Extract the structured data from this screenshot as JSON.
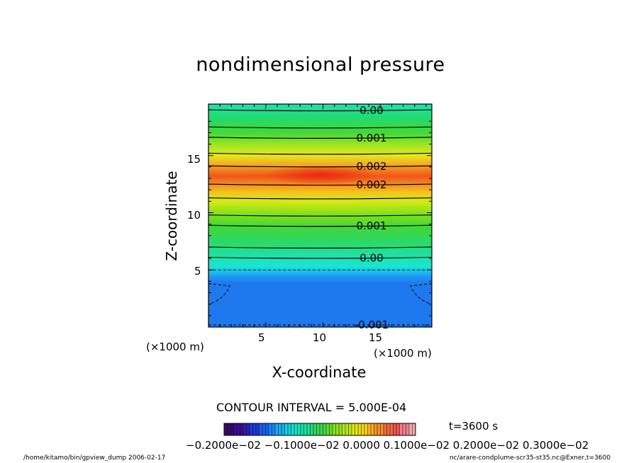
{
  "chart_data": {
    "type": "heatmap",
    "title": "nondimensional pressure",
    "xlabel": "X-coordinate",
    "ylabel": "Z-coordinate",
    "x_unit": "(×1000 m)",
    "y_unit": "(×1000 m)",
    "xlim": [
      0,
      19.5
    ],
    "ylim": [
      0,
      19.5
    ],
    "x_ticks": [
      5,
      10,
      15
    ],
    "y_ticks": [
      5,
      10,
      15
    ],
    "contour_labels": [
      {
        "text": "0.00",
        "z": 19.0
      },
      {
        "text": "0.001",
        "z": 16.6
      },
      {
        "text": "0.002",
        "z": 14.1
      },
      {
        "text": "0.002",
        "z": 12.5
      },
      {
        "text": "0.001",
        "z": 8.9
      },
      {
        "text": "0.00",
        "z": 6.1
      },
      {
        "text": "-0.001",
        "z": 0.0
      }
    ],
    "contour_interval_text": "CONTOUR INTERVAL = 5.000E-04",
    "time_text": "t=3600 s",
    "colorbar_labels_text": "−0.2000e−02  −0.1000e−02  0.0000  0.1000e−02  0.2000e−02  0.3000e−02",
    "colorbar_range": [
      -0.002,
      0.003
    ],
    "bands_bottom_to_top": [
      {
        "z": 0.0,
        "color": "#1e78ee"
      },
      {
        "z": 3.8,
        "color": "#1e78ee"
      },
      {
        "z": 4.4,
        "color": "#2196f2"
      },
      {
        "z": 4.9,
        "color": "#16c4ec"
      },
      {
        "z": 5.3,
        "color": "#19e6d2"
      },
      {
        "z": 6.4,
        "color": "#20e0a0"
      },
      {
        "z": 7.4,
        "color": "#2cd86a"
      },
      {
        "z": 8.7,
        "color": "#3ed83a"
      },
      {
        "z": 10.0,
        "color": "#8ce018"
      },
      {
        "z": 11.0,
        "color": "#d6ea16"
      },
      {
        "z": 11.8,
        "color": "#f4c41c"
      },
      {
        "z": 12.5,
        "color": "#f68a1e"
      },
      {
        "z": 13.2,
        "color": "#f0561a"
      },
      {
        "z": 14.1,
        "color": "#f6a020"
      },
      {
        "z": 15.0,
        "color": "#e6e61e"
      },
      {
        "z": 16.0,
        "color": "#9ae424"
      },
      {
        "z": 17.0,
        "color": "#44d838"
      },
      {
        "z": 18.3,
        "color": "#22da6e"
      },
      {
        "z": 19.5,
        "color": "#1ee2b0"
      }
    ],
    "contours_solid_z": [
      19.0,
      17.5,
      16.6,
      15.2,
      14.1,
      12.5,
      11.3,
      9.8,
      8.9,
      7.0,
      6.1
    ],
    "contours_dashed_z": [
      5.0,
      0.0
    ],
    "max_center": {
      "x": 9.8,
      "z": 13.3,
      "color": "#e82a14"
    }
  },
  "footer": {
    "left": "/home/kitamo/bin/gpview_dump  2006-02-17",
    "right": "nc/arare-condplume-scr35-st35.nc@Exner,t=3600"
  }
}
